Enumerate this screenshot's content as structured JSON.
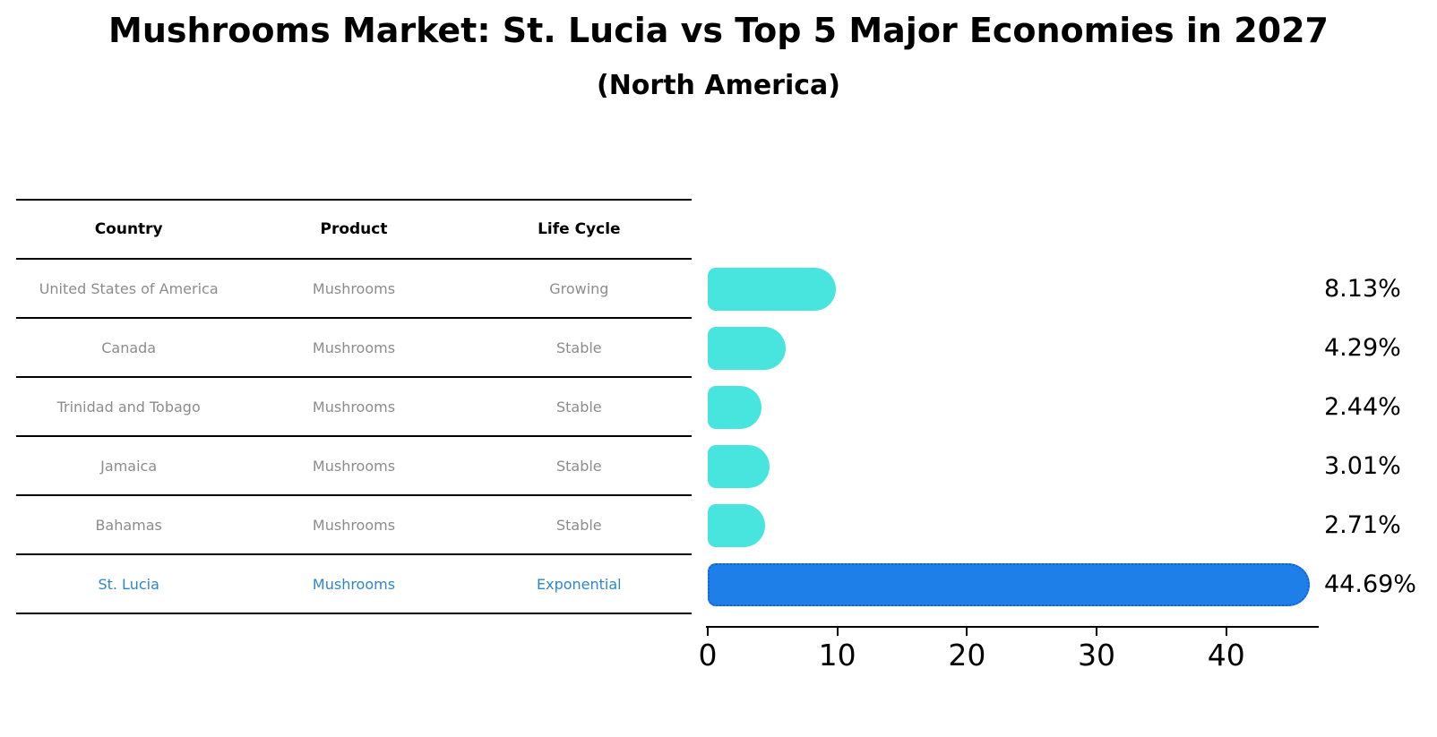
{
  "title": "Mushrooms Market: St. Lucia vs Top 5 Major Economies in 2027",
  "subtitle": "(North America)",
  "colors": {
    "bar_default": "#48e5df",
    "bar_highlight": "#1e7fe8",
    "bar_highlight_border": "#1161d9",
    "highlight_text": "#2e86c8",
    "table_text": "#8c8c8c",
    "header_text": "#000000",
    "axis": "#000000"
  },
  "table": {
    "headers": [
      "Country",
      "Product",
      "Life Cycle"
    ],
    "rows": [
      {
        "country": "United States of America",
        "product": "Mushrooms",
        "life_cycle": "Growing",
        "highlight": false
      },
      {
        "country": "Canada",
        "product": "Mushrooms",
        "life_cycle": "Stable",
        "highlight": false
      },
      {
        "country": "Trinidad and Tobago",
        "product": "Mushrooms",
        "life_cycle": "Stable",
        "highlight": false
      },
      {
        "country": "Jamaica",
        "product": "Mushrooms",
        "life_cycle": "Stable",
        "highlight": false
      },
      {
        "country": "Bahamas",
        "product": "Mushrooms",
        "life_cycle": "Stable",
        "highlight": false
      },
      {
        "country": "St. Lucia",
        "product": "Mushrooms",
        "life_cycle": "Exponential",
        "highlight": true
      }
    ]
  },
  "chart_data": {
    "type": "bar",
    "orientation": "horizontal",
    "title": "Mushrooms Market: St. Lucia vs Top 5 Major Economies in 2027",
    "subtitle": "(North America)",
    "categories": [
      "United States of America",
      "Canada",
      "Trinidad and Tobago",
      "Jamaica",
      "Bahamas",
      "St. Lucia"
    ],
    "values": [
      8.13,
      4.29,
      2.44,
      3.01,
      2.71,
      44.69
    ],
    "labels": [
      "8.13%",
      "4.29%",
      "2.44%",
      "3.01%",
      "2.71%",
      "44.69%"
    ],
    "highlight_index": 5,
    "xlabel": "",
    "ylabel": "",
    "xlim": [
      0,
      47
    ],
    "x_ticks": [
      0,
      10,
      20,
      30,
      40
    ],
    "grid": false,
    "legend": false,
    "bar_style": "rounded",
    "highlight_border": "dotted"
  }
}
